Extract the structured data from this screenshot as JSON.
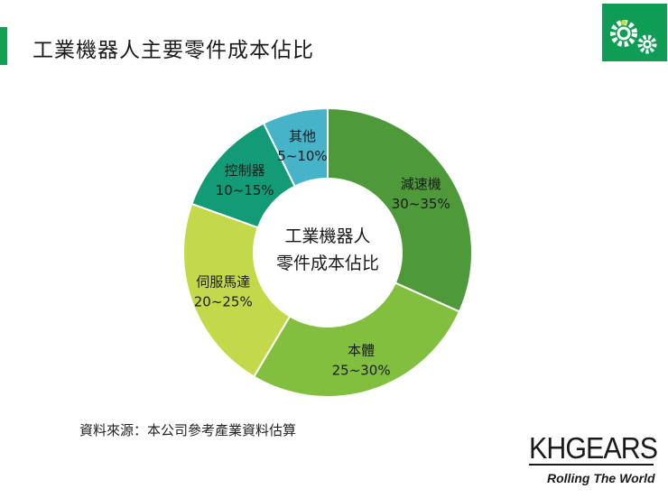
{
  "header": {
    "title": "工業機器人主要零件成本佔比",
    "logo_icon": "gears-icon",
    "accent_color": "#12a150"
  },
  "chart_data": {
    "type": "pie",
    "center_label_lines": [
      "工業機器人",
      "零件成本佔比"
    ],
    "slices": [
      {
        "name": "減速機",
        "label": "30~35%",
        "value": 32.5,
        "color": "#4e9a3a"
      },
      {
        "name": "本體",
        "label": "25~30%",
        "value": 27.5,
        "color": "#83bf3f"
      },
      {
        "name": "伺服馬達",
        "label": "20~25%",
        "value": 22.5,
        "color": "#c4d94a"
      },
      {
        "name": "控制器",
        "label": "10~15%",
        "value": 12.5,
        "color": "#139a76"
      },
      {
        "name": "其他",
        "label": "5~10%",
        "value": 7.5,
        "color": "#46b3c8"
      }
    ]
  },
  "footer": {
    "source": "資料來源：本公司參考產業資料估算",
    "brand": "KHGEARS",
    "tagline": "Rolling The World"
  }
}
